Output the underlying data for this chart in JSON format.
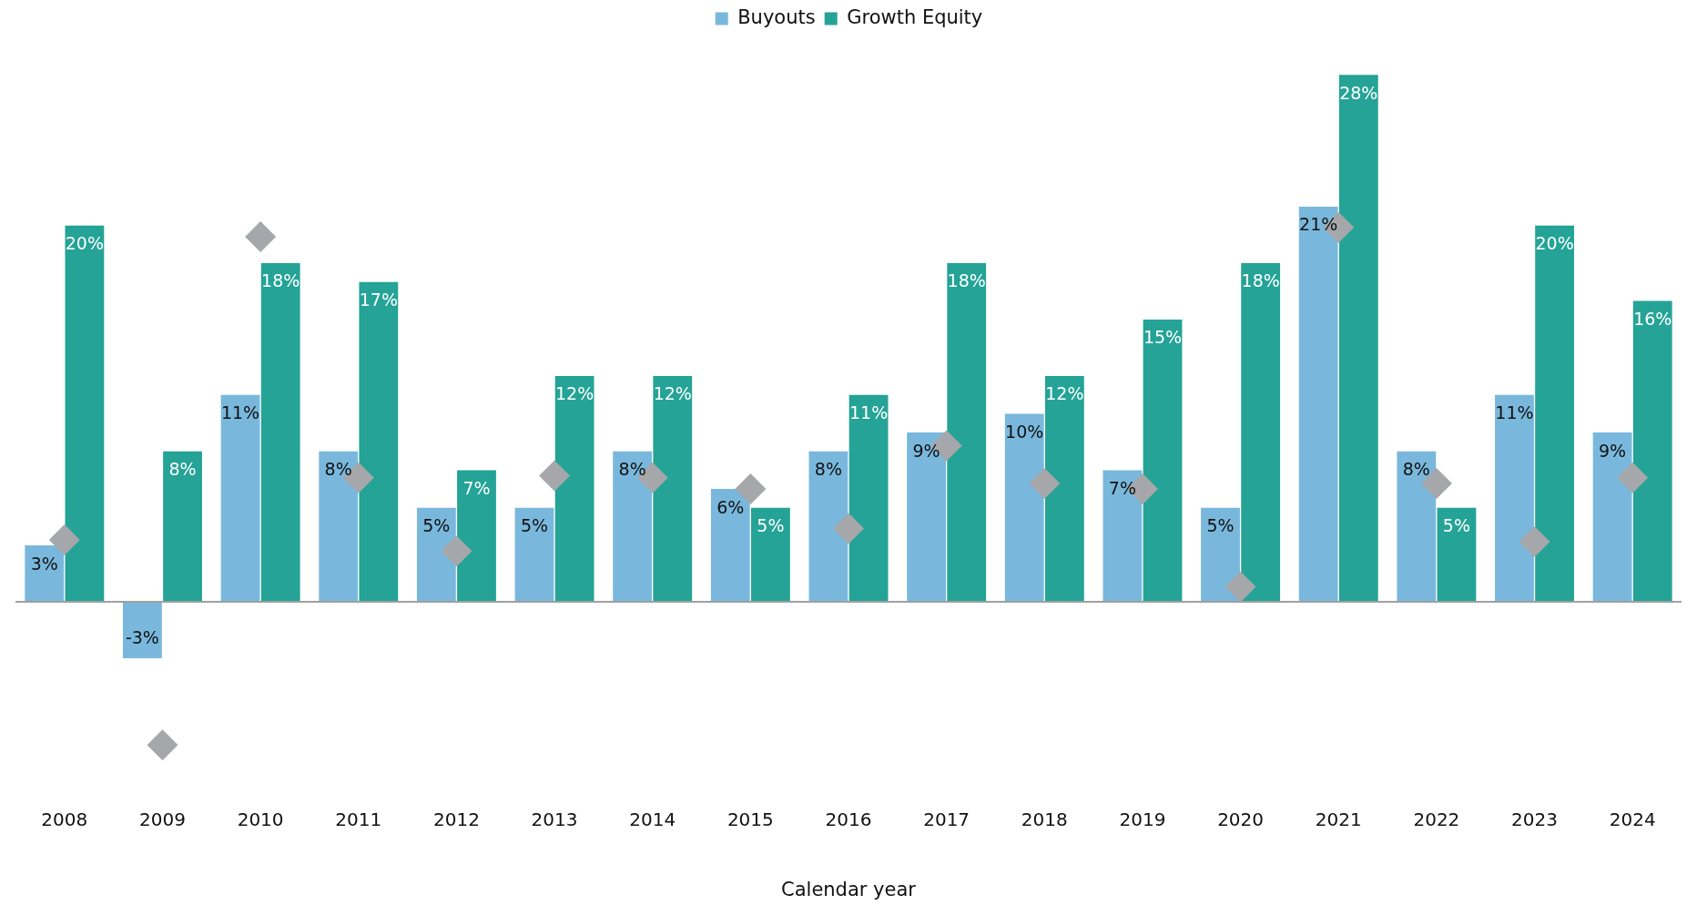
{
  "chart_data": {
    "type": "bar",
    "xlabel": "Calendar year",
    "legend": "top",
    "categories": [
      "2008",
      "2009",
      "2010",
      "2011",
      "2012",
      "2013",
      "2014",
      "2015",
      "2016",
      "2017",
      "2018",
      "2019",
      "2020",
      "2021",
      "2022",
      "2023",
      "2024"
    ],
    "series": [
      {
        "name": "Buyouts",
        "color": "#79b8dc",
        "values": [
          3,
          -3,
          11,
          8,
          5,
          5,
          8,
          6,
          8,
          9,
          10,
          7,
          5,
          21,
          8,
          11,
          9
        ],
        "value_labels": [
          "3%",
          "-3%",
          "11%",
          "8%",
          "5%",
          "5%",
          "8%",
          "6%",
          "8%",
          "9%",
          "10%",
          "7%",
          "5%",
          "21%",
          "8%",
          "11%",
          "9%"
        ]
      },
      {
        "name": "Growth Equity",
        "color": "#24a396",
        "values": [
          20,
          8,
          18,
          17,
          7,
          12,
          12,
          5,
          11,
          18,
          12,
          15,
          18,
          28,
          5,
          20,
          16
        ],
        "value_labels": [
          "20%",
          "8%",
          "18%",
          "17%",
          "7%",
          "12%",
          "12%",
          "5%",
          "11%",
          "18%",
          "12%",
          "15%",
          "18%",
          "28%",
          "5%",
          "20%",
          "16%"
        ]
      },
      {
        "type": "scatter",
        "marker": "diamond",
        "color": "#a6a7aa",
        "values": [
          3.3,
          -7.6,
          19.4,
          6.6,
          2.7,
          6.7,
          6.6,
          6.0,
          3.9,
          8.3,
          6.3,
          6.0,
          0.8,
          19.9,
          6.3,
          3.2,
          6.6
        ]
      }
    ]
  }
}
